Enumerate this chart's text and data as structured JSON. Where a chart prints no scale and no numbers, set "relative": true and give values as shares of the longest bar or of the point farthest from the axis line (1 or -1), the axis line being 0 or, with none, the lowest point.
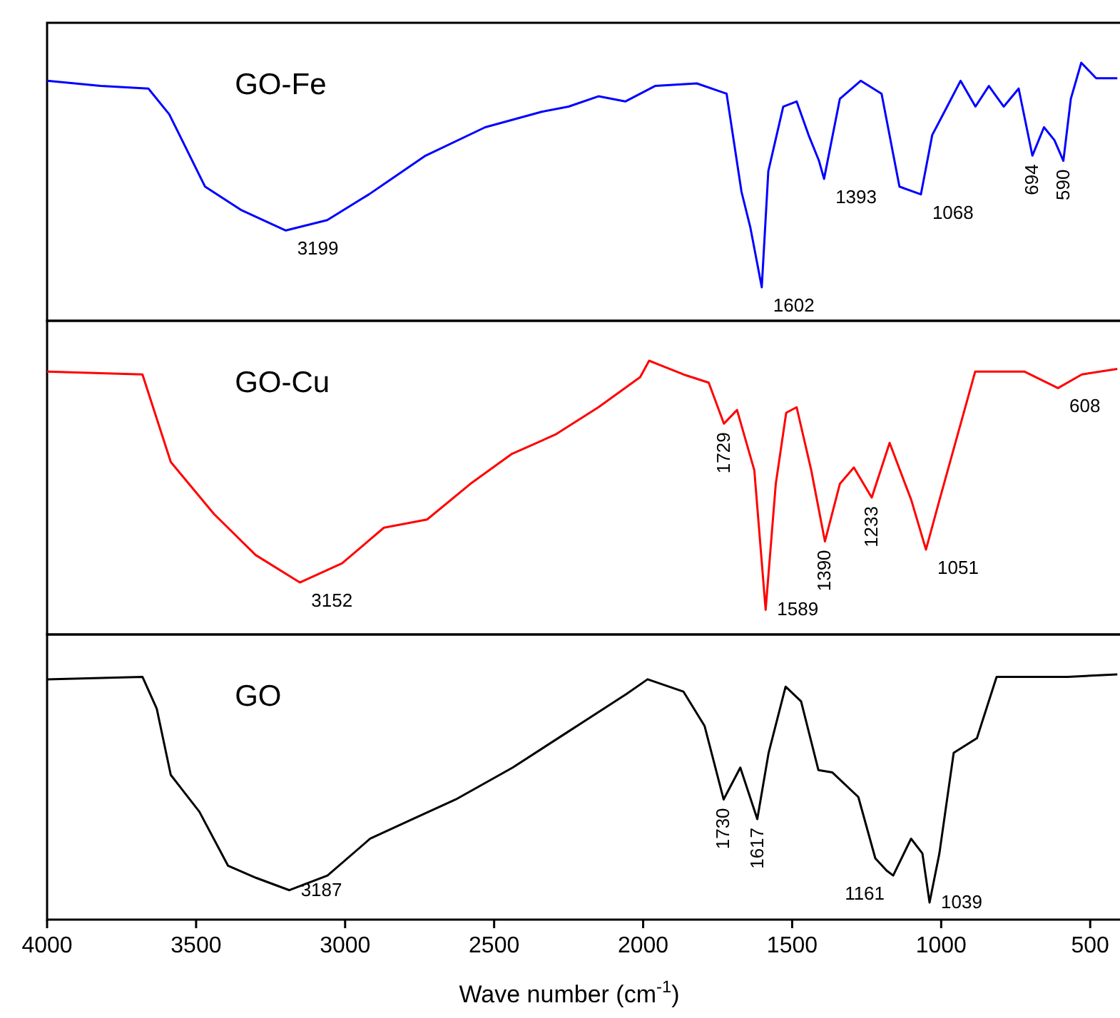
{
  "chart_data": [
    {
      "type": "line",
      "relative": true,
      "xlim": [
        4000,
        400
      ],
      "tick_labels": false,
      "x": [
        4000,
        3820,
        3660,
        3590,
        3470,
        3350,
        3199,
        3060,
        2920,
        2730,
        2530,
        2340,
        2250,
        2150,
        2060,
        1960,
        1820,
        1720,
        1670,
        1640,
        1602,
        1580,
        1530,
        1485,
        1445,
        1410,
        1393,
        1340,
        1270,
        1200,
        1140,
        1068,
        1030,
        980,
        935,
        885,
        840,
        790,
        740,
        694,
        655,
        620,
        590,
        565,
        530,
        480,
        409
      ],
      "series": [
        {
          "name": "GO-Fe",
          "color": "#0000ff",
          "values": [
            0.93,
            0.91,
            0.9,
            0.8,
            0.52,
            0.43,
            0.35,
            0.39,
            0.49,
            0.64,
            0.75,
            0.81,
            0.83,
            0.87,
            0.85,
            0.91,
            0.92,
            0.88,
            0.5,
            0.36,
            0.13,
            0.58,
            0.83,
            0.85,
            0.72,
            0.62,
            0.55,
            0.86,
            0.93,
            0.88,
            0.52,
            0.49,
            0.72,
            0.83,
            0.93,
            0.83,
            0.91,
            0.83,
            0.9,
            0.64,
            0.75,
            0.7,
            0.62,
            0.86,
            1,
            0.94,
            0.94
          ]
        }
      ],
      "annotations": [
        {
          "text": "3199",
          "x": 3199,
          "y": 0.35
        },
        {
          "text": "1602",
          "x": 1602,
          "y": 0.13
        },
        {
          "text": "1393",
          "x": 1393,
          "y": 0.55
        },
        {
          "text": "1068",
          "x": 1068,
          "y": 0.49
        },
        {
          "text": "694",
          "x": 694,
          "y": 0.64
        },
        {
          "text": "590",
          "x": 590,
          "y": 0.62
        }
      ]
    },
    {
      "type": "line",
      "relative": true,
      "xlim": [
        4000,
        400
      ],
      "tick_labels": false,
      "x": [
        4000,
        3680,
        3585,
        3440,
        3300,
        3152,
        3010,
        2870,
        2725,
        2580,
        2440,
        2295,
        2150,
        2010,
        1980,
        1865,
        1780,
        1729,
        1685,
        1627,
        1589,
        1555,
        1520,
        1485,
        1436,
        1390,
        1340,
        1293,
        1233,
        1173,
        1100,
        1051,
        1006,
        886,
        720,
        608,
        528,
        409
      ],
      "series": [
        {
          "name": "GO-Cu",
          "color": "#ff0000",
          "values": [
            0.96,
            0.95,
            0.63,
            0.44,
            0.29,
            0.19,
            0.26,
            0.39,
            0.42,
            0.55,
            0.66,
            0.73,
            0.83,
            0.94,
            1,
            0.95,
            0.92,
            0.77,
            0.82,
            0.6,
            0.09,
            0.55,
            0.81,
            0.83,
            0.6,
            0.34,
            0.55,
            0.61,
            0.5,
            0.7,
            0.49,
            0.31,
            0.49,
            0.96,
            0.96,
            0.9,
            0.95,
            0.97
          ]
        }
      ],
      "annotations": [
        {
          "text": "3152",
          "x": 3152,
          "y": 0.19
        },
        {
          "text": "1729",
          "x": 1729,
          "y": 0.77
        },
        {
          "text": "1589",
          "x": 1589,
          "y": 0.09
        },
        {
          "text": "1390",
          "x": 1390,
          "y": 0.34
        },
        {
          "text": "1233",
          "x": 1233,
          "y": 0.5
        },
        {
          "text": "1051",
          "x": 1051,
          "y": 0.31
        },
        {
          "text": "608",
          "x": 608,
          "y": 0.9
        }
      ]
    },
    {
      "type": "line",
      "relative": true,
      "xlim": [
        4000,
        400
      ],
      "xticks": [
        4000,
        3500,
        3000,
        2500,
        2000,
        1500,
        1000,
        500
      ],
      "tick_labels": "x",
      "xlabel": "Wave number (cm$^{-1}$)",
      "x": [
        4000,
        3680,
        3632,
        3585,
        3489,
        3393,
        3298,
        3187,
        3059,
        2916,
        2773,
        2629,
        2438,
        2247,
        2056,
        1985,
        1865,
        1794,
        1730,
        1674,
        1617,
        1579,
        1522,
        1470,
        1412,
        1365,
        1278,
        1221,
        1183,
        1161,
        1101,
        1063,
        1039,
        1006,
        958,
        880,
        814,
        575,
        409
      ],
      "series": [
        {
          "name": "GO",
          "color": "#000000",
          "values": [
            0.98,
            0.99,
            0.86,
            0.59,
            0.44,
            0.22,
            0.17,
            0.12,
            0.18,
            0.33,
            0.41,
            0.49,
            0.62,
            0.77,
            0.92,
            0.98,
            0.93,
            0.79,
            0.49,
            0.62,
            0.41,
            0.68,
            0.95,
            0.89,
            0.61,
            0.6,
            0.5,
            0.25,
            0.2,
            0.18,
            0.33,
            0.27,
            0.07,
            0.27,
            0.68,
            0.74,
            0.99,
            0.99,
            1
          ]
        }
      ],
      "annotations": [
        {
          "text": "3187",
          "x": 3187,
          "y": 0.12
        },
        {
          "text": "1730",
          "x": 1730,
          "y": 0.49
        },
        {
          "text": "1617",
          "x": 1617,
          "y": 0.41
        },
        {
          "text": "1161",
          "x": 1161,
          "y": 0.18
        },
        {
          "text": "1039",
          "x": 1039,
          "y": 0.07
        }
      ]
    }
  ]
}
